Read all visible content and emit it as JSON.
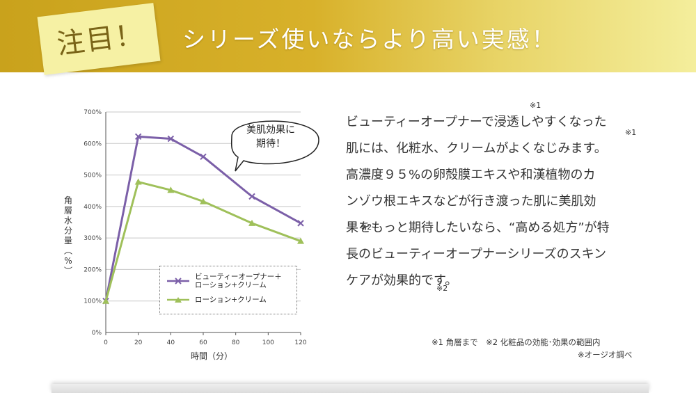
{
  "header": {
    "tag": "注目！",
    "headline": "シリーズ使いならより高い実感！"
  },
  "bubble": {
    "line1": "美肌効果に",
    "line2": "期待！"
  },
  "chart_data": {
    "type": "line",
    "xlabel": "時間（分）",
    "ylabel": "角層水分量（%）",
    "x": [
      0,
      20,
      40,
      60,
      90,
      120
    ],
    "x_ticks": [
      "0",
      "20",
      "40",
      "60",
      "80",
      "100",
      "120"
    ],
    "xlim": [
      0,
      120
    ],
    "y_ticks": [
      "0%",
      "100%",
      "200%",
      "300%",
      "400%",
      "500%",
      "600%",
      "700%"
    ],
    "ylim": [
      0,
      700
    ],
    "grid": true,
    "legend_placement": "bottom-right",
    "series": [
      {
        "name": "ビューティーオープナー＋ローション+クリーム",
        "legend_lines": [
          "ビューティーオープナー＋",
          "ローション+クリーム"
        ],
        "values": [
          100,
          622,
          615,
          558,
          432,
          347
        ],
        "color": "#7b5fa8",
        "marker": "x"
      },
      {
        "name": "ローション+クリーム",
        "legend_lines": [
          "ローション+クリーム"
        ],
        "values": [
          100,
          478,
          452,
          416,
          347,
          290
        ],
        "color": "#9fc05a",
        "marker": "triangle"
      }
    ]
  },
  "body": {
    "lines": [
      "ビューティーオープナーで浸透しやすくなった",
      "肌には、化粧水、クリームがよくなじみます。",
      "高濃度９５%の卵殻膜エキスや和漢植物のカ",
      "ンゾウ根エキスなどが行き渡った肌に美肌効",
      "果をもっと期待したいなら、“高める処方”が特",
      "長のビューティーオープナーシリーズのスキン",
      "ケアが効果的です。"
    ],
    "sup1": "※1",
    "sup2": "※2"
  },
  "notes": {
    "line1": "※1 角層まで　※2 化粧品の効能･効果の範囲内",
    "line2": "※オージオ調べ"
  }
}
